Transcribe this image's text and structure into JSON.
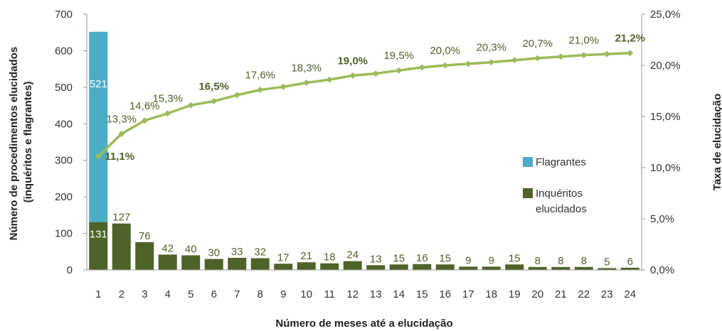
{
  "chart_data": {
    "type": "bar",
    "categories": [
      "1",
      "2",
      "3",
      "4",
      "5",
      "6",
      "7",
      "8",
      "9",
      "10",
      "11",
      "12",
      "13",
      "14",
      "15",
      "16",
      "17",
      "18",
      "19",
      "20",
      "21",
      "22",
      "23",
      "24"
    ],
    "series": [
      {
        "name": "Inquéritos elucidados",
        "axis": "left",
        "stack": "procedimentos",
        "values": [
          131,
          127,
          76,
          42,
          40,
          30,
          33,
          32,
          17,
          21,
          18,
          24,
          13,
          15,
          16,
          15,
          9,
          9,
          15,
          8,
          8,
          8,
          5,
          6
        ],
        "color": "#4f6228"
      },
      {
        "name": "Flagrantes",
        "axis": "left",
        "stack": "procedimentos",
        "values": [
          521,
          0,
          0,
          0,
          0,
          0,
          0,
          0,
          0,
          0,
          0,
          0,
          0,
          0,
          0,
          0,
          0,
          0,
          0,
          0,
          0,
          0,
          0,
          0
        ],
        "labels": [
          "521",
          "",
          "",
          "",
          "",
          "",
          "",
          "",
          "",
          "",
          "",
          "",
          "",
          "",
          "",
          "",
          "",
          "",
          "",
          "",
          "",
          "",
          "",
          ""
        ],
        "color": "#4bacc6"
      },
      {
        "type": "line",
        "axis": "right",
        "values": [
          11.1,
          13.3,
          14.6,
          15.3,
          16.1,
          16.5,
          17.1,
          17.6,
          17.9,
          18.3,
          18.6,
          19.0,
          19.2,
          19.5,
          19.8,
          20.0,
          20.15,
          20.3,
          20.5,
          20.7,
          20.85,
          21.0,
          21.1,
          21.2
        ],
        "labels": [
          "11,1%",
          "13,3%",
          "14,6%",
          "15,3%",
          "",
          "16,5%",
          "",
          "17,6%",
          "",
          "18,3%",
          "",
          "19,0%",
          "",
          "19,5%",
          "",
          "20,0%",
          "",
          "20,3%",
          "",
          "20,7%",
          "",
          "21,0%",
          "",
          "21,2%"
        ],
        "bold_labels": [
          "11,1%",
          "16,5%",
          "19,0%",
          "21,2%"
        ],
        "color": "#9bbb59"
      }
    ],
    "xlabel": "Número de meses até a elucidação",
    "ylabel": "Número de procedimentos elucidados (inquéritos e flagrantes)",
    "ylabel_lines": [
      "Número de procedimentos elucidados",
      "(inquéritos e flagrantes)"
    ],
    "y2label": "Taxa de elucidação",
    "ylim": [
      0,
      700
    ],
    "y_ticks": [
      0,
      100,
      200,
      300,
      400,
      500,
      600,
      700
    ],
    "y_tick_labels": [
      "0",
      "100",
      "200",
      "300",
      "400",
      "500",
      "600",
      "700"
    ],
    "y2lim": [
      0,
      25
    ],
    "y2_ticks": [
      0,
      5,
      10,
      15,
      20,
      25
    ],
    "y2_tick_labels": [
      "0,0%",
      "5,0%",
      "10,0%",
      "15,0%",
      "20,0%",
      "25,0%"
    ],
    "legend": {
      "position": "right",
      "items": [
        {
          "lines": [
            "Flagrantes"
          ],
          "color": "#4bacc6"
        },
        {
          "lines": [
            "Inquéritos",
            "elucidados"
          ],
          "color": "#4f6228"
        }
      ]
    },
    "grid": false
  }
}
